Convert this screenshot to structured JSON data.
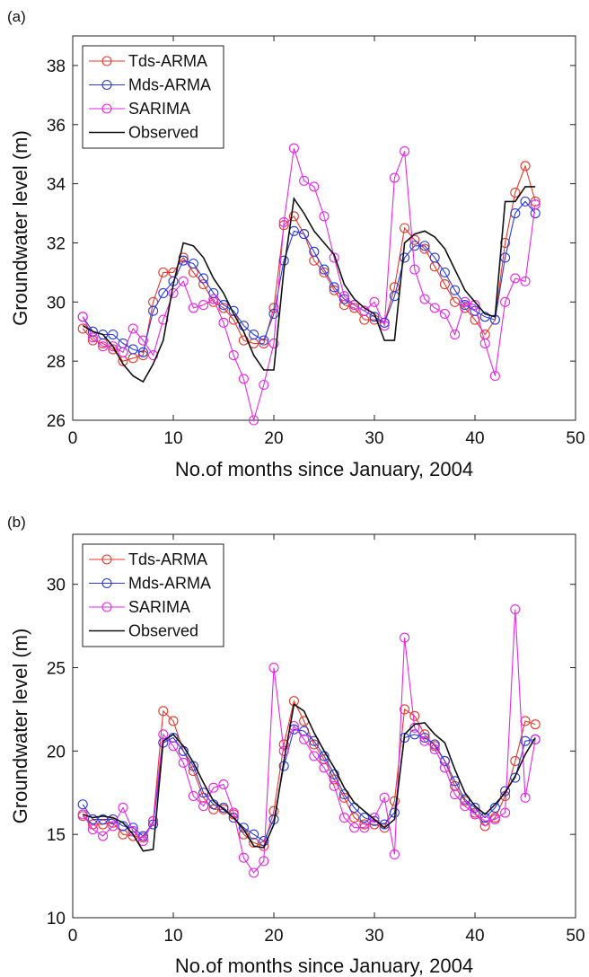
{
  "chart_data": [
    {
      "type": "line",
      "panel_label": "(a)",
      "xlabel": "No.of months since January, 2004",
      "ylabel": "Groundwater level (m)",
      "xlim": [
        0,
        50
      ],
      "ylim": [
        26,
        39
      ],
      "xticks": [
        0,
        10,
        20,
        30,
        40,
        50
      ],
      "yticks": [
        26,
        28,
        30,
        32,
        34,
        36,
        38
      ],
      "grid": false,
      "legend_position": "top-left",
      "series": [
        {
          "name": "Tds-ARMA",
          "color": "#e8382a",
          "marker": "circle",
          "x": [
            1,
            2,
            3,
            4,
            5,
            6,
            7,
            8,
            9,
            10,
            11,
            12,
            13,
            14,
            15,
            16,
            17,
            18,
            19,
            20,
            21,
            22,
            23,
            24,
            25,
            26,
            27,
            28,
            29,
            30,
            31,
            32,
            33,
            34,
            35,
            36,
            37,
            38,
            39,
            40,
            41,
            42,
            43,
            44,
            45,
            46
          ],
          "y": [
            29.1,
            28.7,
            28.6,
            28.4,
            28.0,
            28.1,
            28.2,
            30.0,
            31.0,
            31.0,
            31.5,
            31.0,
            30.6,
            30.0,
            29.8,
            29.4,
            28.7,
            28.6,
            28.6,
            29.8,
            32.6,
            32.9,
            32.3,
            31.4,
            31.0,
            30.4,
            29.9,
            29.8,
            29.4,
            29.4,
            29.3,
            30.5,
            32.5,
            32.1,
            31.8,
            31.2,
            30.6,
            30.0,
            29.8,
            29.4,
            28.9,
            29.4,
            32.0,
            33.7,
            34.6,
            33.4
          ]
        },
        {
          "name": "Mds-ARMA",
          "color": "#2a3cdf",
          "marker": "circle",
          "x": [
            1,
            2,
            3,
            4,
            5,
            6,
            7,
            8,
            9,
            10,
            11,
            12,
            13,
            14,
            15,
            16,
            17,
            18,
            19,
            20,
            21,
            22,
            23,
            24,
            25,
            26,
            27,
            28,
            29,
            30,
            31,
            32,
            33,
            34,
            35,
            36,
            37,
            38,
            39,
            40,
            41,
            42,
            43,
            44,
            45,
            46
          ],
          "y": [
            29.5,
            29.0,
            28.9,
            28.9,
            28.6,
            28.4,
            28.3,
            29.7,
            30.3,
            30.7,
            31.4,
            31.3,
            30.8,
            30.3,
            29.9,
            29.7,
            29.2,
            28.9,
            28.7,
            29.6,
            31.4,
            32.4,
            32.3,
            31.7,
            31.1,
            30.5,
            30.1,
            29.9,
            29.7,
            29.5,
            29.3,
            30.2,
            31.5,
            31.9,
            31.9,
            31.5,
            31.0,
            30.4,
            29.9,
            29.7,
            29.5,
            29.4,
            31.5,
            33.0,
            33.4,
            33.0
          ]
        },
        {
          "name": "SARIMA",
          "color": "#e627e6",
          "marker": "circle",
          "x": [
            1,
            2,
            3,
            4,
            5,
            6,
            7,
            8,
            9,
            10,
            11,
            12,
            13,
            14,
            15,
            16,
            17,
            18,
            19,
            20,
            21,
            22,
            23,
            24,
            25,
            26,
            27,
            28,
            29,
            30,
            31,
            32,
            33,
            34,
            35,
            36,
            37,
            38,
            39,
            40,
            41,
            42,
            43,
            44,
            45,
            46
          ],
          "y": [
            29.5,
            28.8,
            28.5,
            28.5,
            28.3,
            29.1,
            28.7,
            28.2,
            29.4,
            30.3,
            30.7,
            29.8,
            29.9,
            30.1,
            29.3,
            28.2,
            27.4,
            26.0,
            27.2,
            28.6,
            32.7,
            35.2,
            34.1,
            33.9,
            32.9,
            31.5,
            30.2,
            29.9,
            29.7,
            30.0,
            29.2,
            34.2,
            35.1,
            31.1,
            30.1,
            29.8,
            29.6,
            28.9,
            30.0,
            29.9,
            28.6,
            27.5,
            30.0,
            30.8,
            30.7,
            33.3
          ]
        },
        {
          "name": "Observed",
          "color": "#111111",
          "marker": "none",
          "x": [
            1,
            2,
            3,
            4,
            5,
            6,
            7,
            8,
            9,
            10,
            11,
            12,
            13,
            14,
            15,
            16,
            17,
            18,
            19,
            20,
            21,
            22,
            23,
            24,
            25,
            26,
            27,
            28,
            29,
            30,
            31,
            32,
            33,
            34,
            35,
            36,
            37,
            38,
            39,
            40,
            41,
            42,
            43,
            44,
            45,
            46
          ],
          "y": [
            29.2,
            29.0,
            28.9,
            28.5,
            27.9,
            27.5,
            27.3,
            27.9,
            28.7,
            30.6,
            32.0,
            31.9,
            31.5,
            30.8,
            30.3,
            29.6,
            29.0,
            28.2,
            27.7,
            27.7,
            31.1,
            33.5,
            33.0,
            32.4,
            32.0,
            31.6,
            30.6,
            30.1,
            29.8,
            29.6,
            28.7,
            28.7,
            32.0,
            32.3,
            32.4,
            32.2,
            31.8,
            31.1,
            30.4,
            30.0,
            29.6,
            29.5,
            33.4,
            33.4,
            33.9,
            33.9
          ]
        }
      ]
    },
    {
      "type": "line",
      "panel_label": "(b)",
      "xlabel": "No.of months since January, 2004",
      "ylabel": "Groundwater level (m)",
      "xlim": [
        0,
        50
      ],
      "ylim": [
        10,
        33
      ],
      "xticks": [
        0,
        10,
        20,
        30,
        40,
        50
      ],
      "yticks": [
        10,
        15,
        20,
        25,
        30
      ],
      "grid": false,
      "legend_position": "top-left",
      "series": [
        {
          "name": "Tds-ARMA",
          "color": "#e8382a",
          "marker": "circle",
          "x": [
            1,
            2,
            3,
            4,
            5,
            6,
            7,
            8,
            9,
            10,
            11,
            12,
            13,
            14,
            15,
            16,
            17,
            18,
            19,
            20,
            21,
            22,
            23,
            24,
            25,
            26,
            27,
            28,
            29,
            30,
            31,
            32,
            33,
            34,
            35,
            36,
            37,
            38,
            39,
            40,
            41,
            42,
            43,
            44,
            45,
            46
          ],
          "y": [
            16.1,
            15.6,
            15.6,
            15.7,
            15.0,
            14.9,
            14.8,
            15.8,
            22.4,
            21.8,
            20.0,
            18.8,
            17.2,
            16.5,
            16.5,
            16.2,
            15.0,
            14.5,
            14.3,
            16.4,
            20.4,
            23.0,
            21.8,
            20.4,
            19.5,
            18.3,
            17.2,
            16.0,
            15.6,
            15.6,
            15.4,
            17.0,
            22.5,
            22.1,
            21.0,
            20.3,
            19.4,
            17.9,
            17.0,
            16.3,
            15.5,
            16.0,
            17.3,
            19.4,
            21.8,
            21.6
          ]
        },
        {
          "name": "Mds-ARMA",
          "color": "#2a3cdf",
          "marker": "circle",
          "x": [
            1,
            2,
            3,
            4,
            5,
            6,
            7,
            8,
            9,
            10,
            11,
            12,
            13,
            14,
            15,
            16,
            17,
            18,
            19,
            20,
            21,
            22,
            23,
            24,
            25,
            26,
            27,
            28,
            29,
            30,
            31,
            32,
            33,
            34,
            35,
            36,
            37,
            38,
            39,
            40,
            41,
            42,
            43,
            44,
            45,
            46
          ],
          "y": [
            16.8,
            15.9,
            15.9,
            15.9,
            15.5,
            15.4,
            14.9,
            15.6,
            20.5,
            20.8,
            20.0,
            19.1,
            17.5,
            16.8,
            16.6,
            16.0,
            15.4,
            15.0,
            14.6,
            15.9,
            19.1,
            21.3,
            21.2,
            20.6,
            19.7,
            18.6,
            17.4,
            16.6,
            16.0,
            15.8,
            15.6,
            16.3,
            20.8,
            21.0,
            20.8,
            20.4,
            19.4,
            18.2,
            17.1,
            16.6,
            16.0,
            16.6,
            17.6,
            18.4,
            20.6,
            20.7
          ]
        },
        {
          "name": "SARIMA",
          "color": "#e627e6",
          "marker": "circle",
          "x": [
            1,
            2,
            3,
            4,
            5,
            6,
            7,
            8,
            9,
            10,
            11,
            12,
            13,
            14,
            15,
            16,
            17,
            18,
            19,
            20,
            21,
            22,
            23,
            24,
            25,
            26,
            27,
            28,
            29,
            30,
            31,
            32,
            33,
            34,
            35,
            36,
            37,
            38,
            39,
            40,
            41,
            42,
            43,
            44,
            45,
            46
          ],
          "y": [
            16.2,
            15.3,
            14.9,
            15.5,
            16.6,
            15.2,
            14.6,
            15.8,
            21.0,
            20.3,
            19.3,
            17.3,
            16.7,
            17.8,
            18.0,
            16.3,
            13.6,
            12.7,
            13.4,
            25.0,
            20.0,
            21.5,
            20.7,
            19.7,
            19.0,
            17.9,
            16.0,
            15.4,
            15.4,
            16.0,
            17.2,
            13.8,
            26.8,
            21.4,
            20.6,
            20.1,
            19.0,
            17.4,
            16.7,
            16.2,
            15.8,
            15.9,
            16.3,
            28.5,
            17.2,
            20.7
          ]
        },
        {
          "name": "Observed",
          "color": "#111111",
          "marker": "none",
          "x": [
            1,
            2,
            3,
            4,
            5,
            6,
            7,
            8,
            9,
            10,
            11,
            12,
            13,
            14,
            15,
            16,
            17,
            18,
            19,
            20,
            21,
            22,
            23,
            24,
            25,
            26,
            27,
            28,
            29,
            30,
            31,
            32,
            33,
            34,
            35,
            36,
            37,
            38,
            39,
            40,
            41,
            42,
            43,
            44,
            45,
            46
          ],
          "y": [
            16.2,
            16.0,
            16.1,
            16.0,
            15.7,
            15.0,
            14.0,
            14.1,
            20.6,
            21.0,
            20.3,
            19.3,
            18.1,
            17.0,
            16.5,
            16.0,
            15.3,
            14.3,
            14.2,
            15.6,
            19.4,
            22.8,
            22.4,
            21.1,
            20.0,
            19.0,
            17.8,
            16.9,
            16.4,
            15.9,
            15.4,
            15.9,
            21.0,
            21.6,
            21.7,
            21.0,
            20.5,
            18.9,
            17.5,
            16.7,
            16.2,
            16.8,
            17.5,
            18.5,
            19.8,
            20.8
          ]
        }
      ]
    }
  ]
}
